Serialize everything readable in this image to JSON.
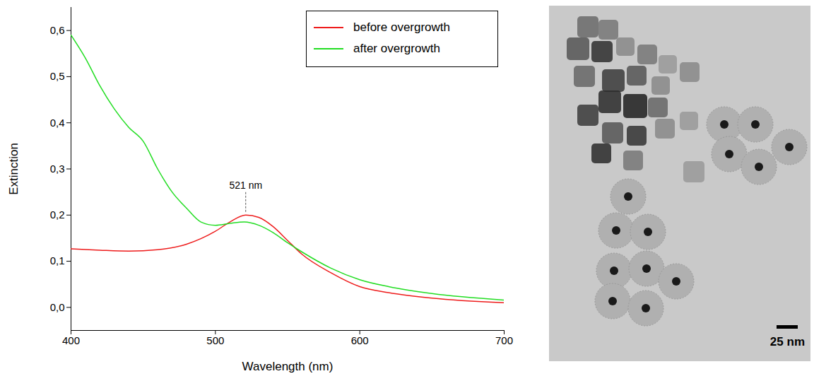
{
  "chart_data": {
    "type": "line",
    "x_label": "Wavelength (nm)",
    "y_label": "Extinction",
    "xlim": [
      400,
      700
    ],
    "xticks": [
      400,
      500,
      600,
      700
    ],
    "ylim": [
      -0.05,
      0.65
    ],
    "yticks": [
      {
        "value": 0,
        "label": "0,0"
      },
      {
        "value": 0.1,
        "label": "0,1"
      },
      {
        "value": 0.2,
        "label": "0,2"
      },
      {
        "value": 0.3,
        "label": "0,3"
      },
      {
        "value": 0.4,
        "label": "0,4"
      },
      {
        "value": 0.5,
        "label": "0,5"
      },
      {
        "value": 0.6,
        "label": "0,6"
      }
    ],
    "legend": "top-right",
    "series": [
      {
        "name": "before overgrowth",
        "color": "#ee1c1c",
        "x": [
          400,
          420,
          440,
          460,
          480,
          500,
          510,
          521,
          530,
          540,
          550,
          560,
          580,
          600,
          620,
          650,
          700
        ],
        "values": [
          0.127,
          0.124,
          0.122,
          0.125,
          0.137,
          0.165,
          0.185,
          0.2,
          0.195,
          0.175,
          0.145,
          0.115,
          0.075,
          0.045,
          0.032,
          0.02,
          0.01
        ]
      },
      {
        "name": "after overgrowth",
        "color": "#22dd22",
        "x": [
          400,
          410,
          420,
          430,
          440,
          450,
          460,
          470,
          480,
          490,
          500,
          510,
          520,
          530,
          540,
          550,
          560,
          580,
          600,
          620,
          650,
          700
        ],
        "values": [
          0.59,
          0.54,
          0.48,
          0.43,
          0.39,
          0.36,
          0.3,
          0.25,
          0.215,
          0.185,
          0.178,
          0.182,
          0.185,
          0.178,
          0.162,
          0.14,
          0.12,
          0.085,
          0.06,
          0.045,
          0.03,
          0.016
        ]
      }
    ],
    "annotations": [
      {
        "text": "521 nm",
        "x": 521,
        "y": 0.2
      }
    ]
  },
  "micrograph": {
    "scale_bar_label": "25 nm"
  }
}
